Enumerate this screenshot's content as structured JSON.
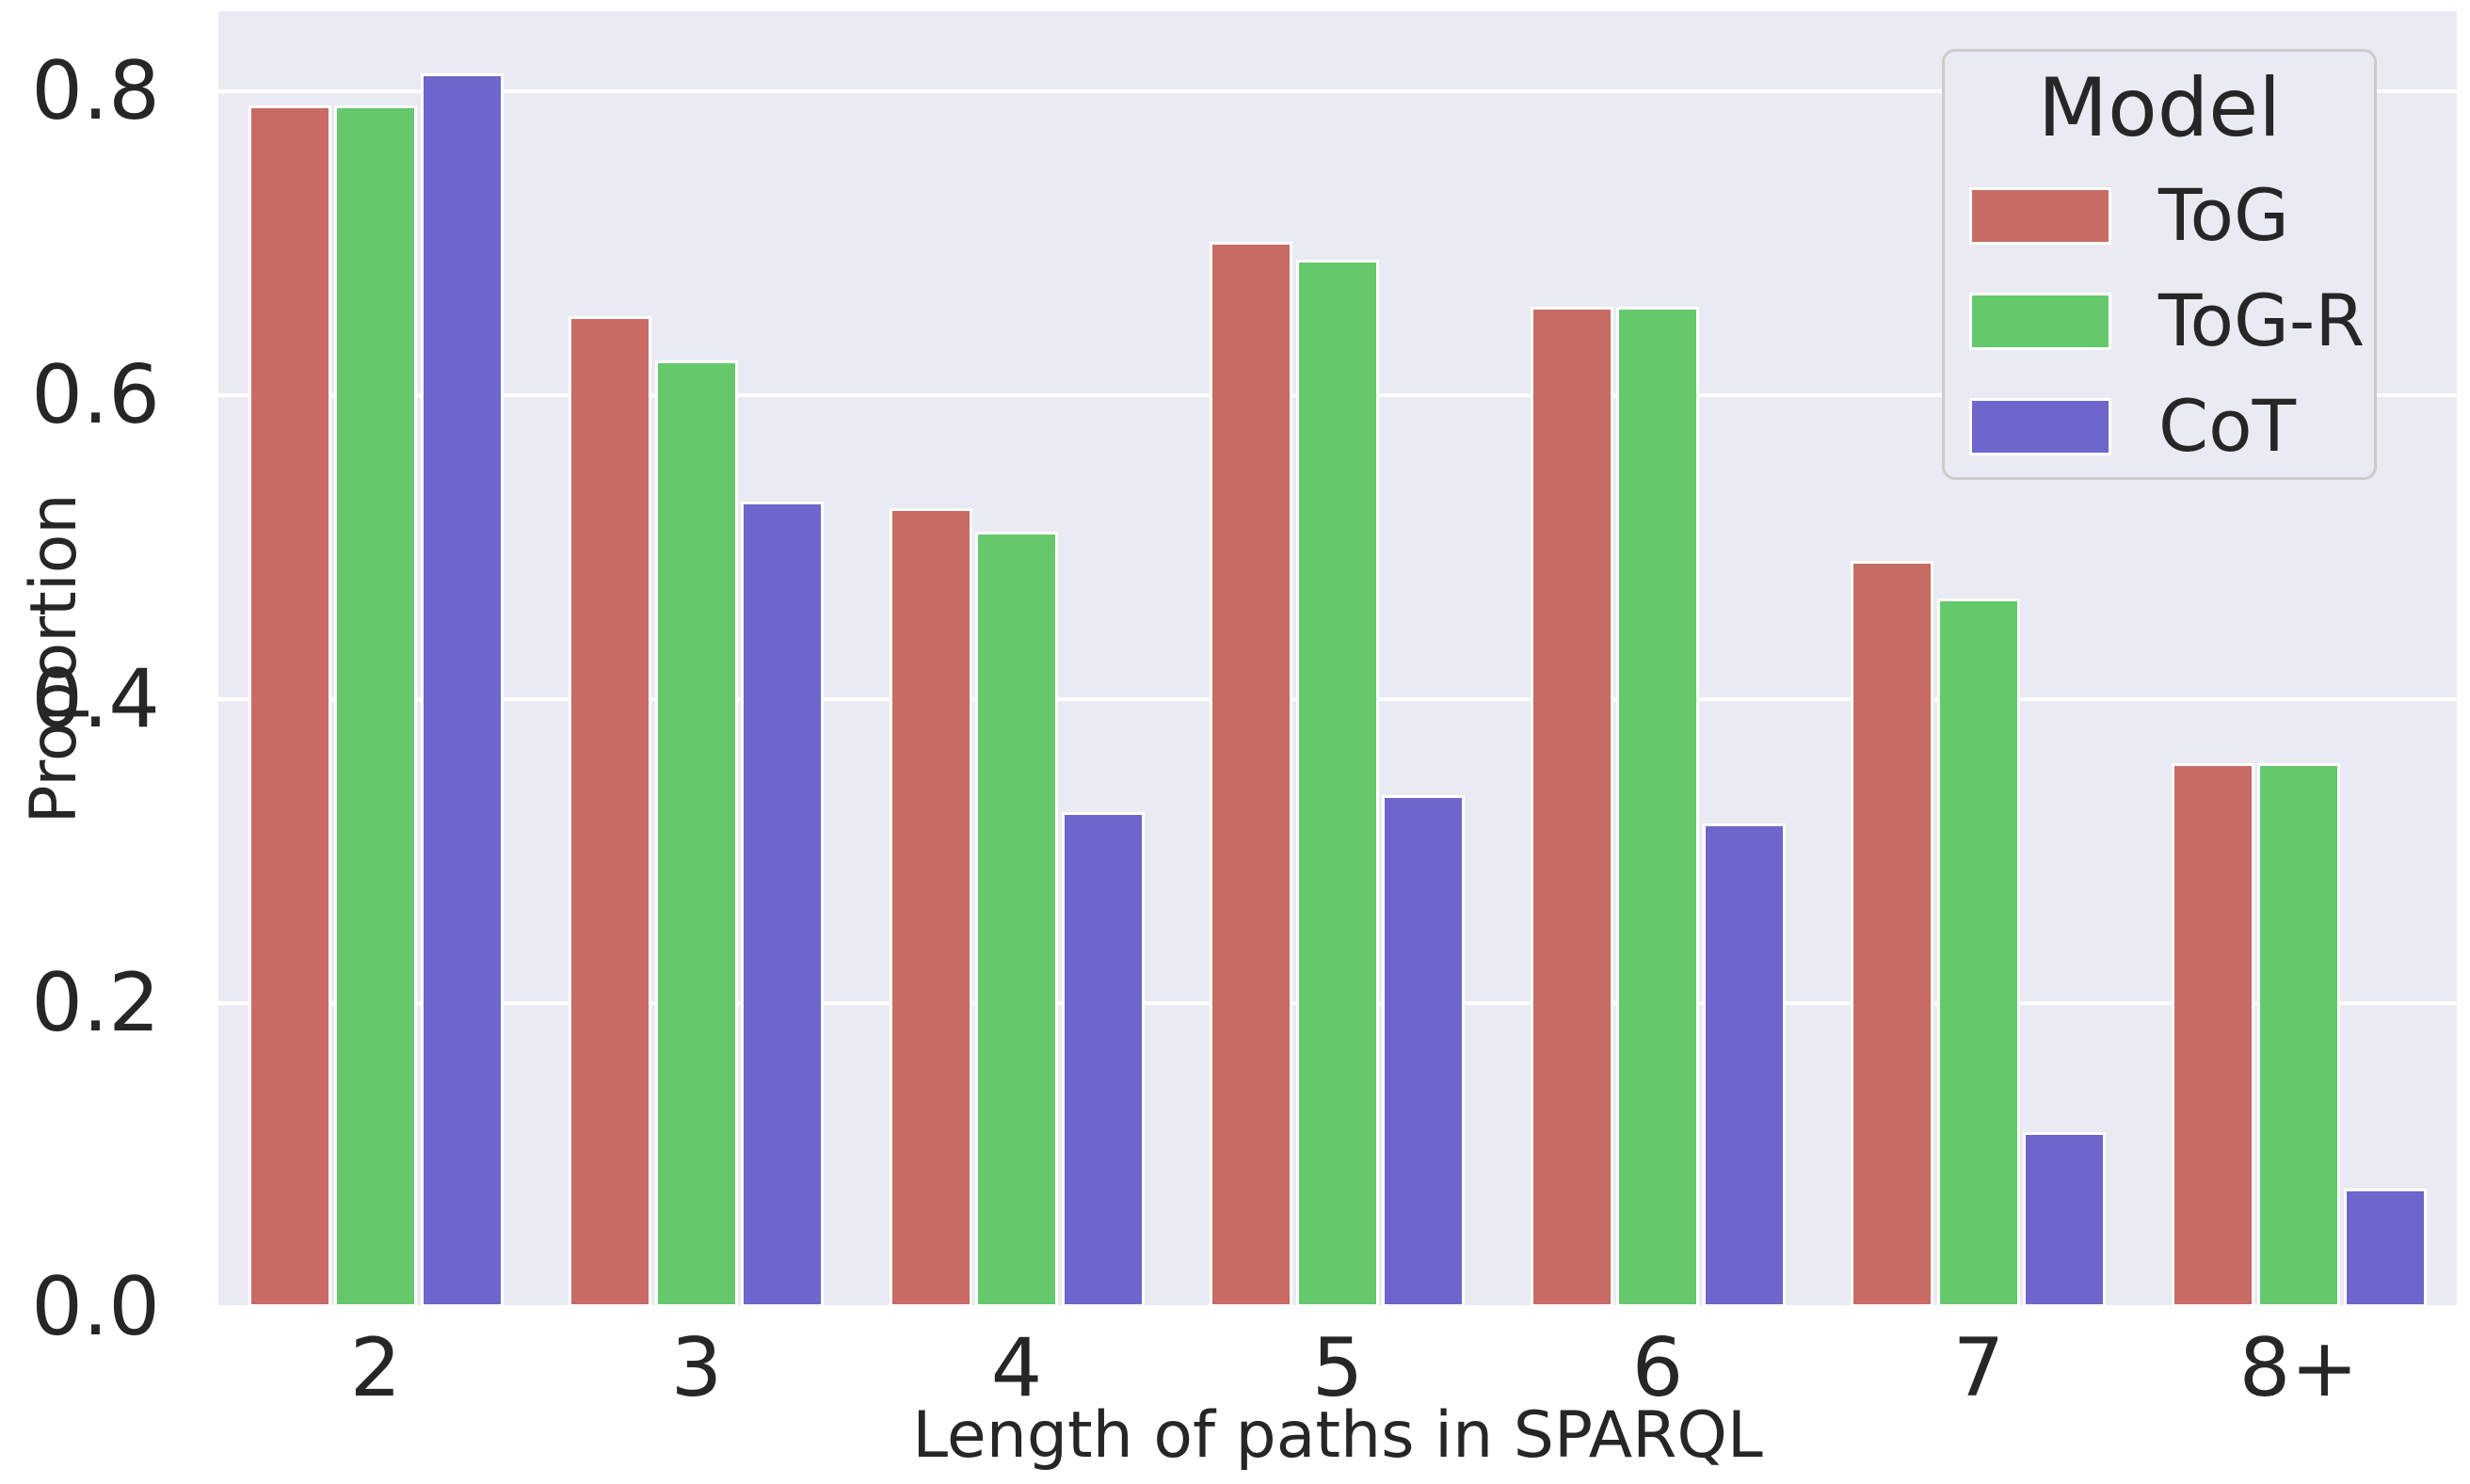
{
  "figure": {
    "background": "#ffffff",
    "plot_background": "#eaeaf2",
    "grid_color": "#ffffff",
    "text_color": "#262626",
    "legend_border_color": "#cccccc"
  },
  "chart_data": {
    "type": "bar",
    "title": "",
    "xlabel": "Length of paths in SPARQL",
    "ylabel": "Proportion",
    "categories": [
      "2",
      "3",
      "4",
      "5",
      "6",
      "7",
      "8+"
    ],
    "series": [
      {
        "name": "ToG",
        "color": "#c86b63",
        "values": [
          0.791,
          0.652,
          0.526,
          0.701,
          0.658,
          0.491,
          0.358
        ]
      },
      {
        "name": "ToG-R",
        "color": "#65c96c",
        "values": [
          0.791,
          0.623,
          0.51,
          0.689,
          0.658,
          0.466,
          0.358
        ]
      },
      {
        "name": "CoT",
        "color": "#6e66cc",
        "values": [
          0.812,
          0.53,
          0.326,
          0.337,
          0.318,
          0.115,
          0.078
        ]
      }
    ],
    "yticks": [
      0.0,
      0.2,
      0.4,
      0.6,
      0.8
    ],
    "ytick_labels": [
      "0.0",
      "0.2",
      "0.4",
      "0.6",
      "0.8"
    ],
    "ylim": [
      0,
      0.853
    ],
    "grid": "horizontal",
    "legend_title": "Model",
    "legend_position": "upper right"
  }
}
